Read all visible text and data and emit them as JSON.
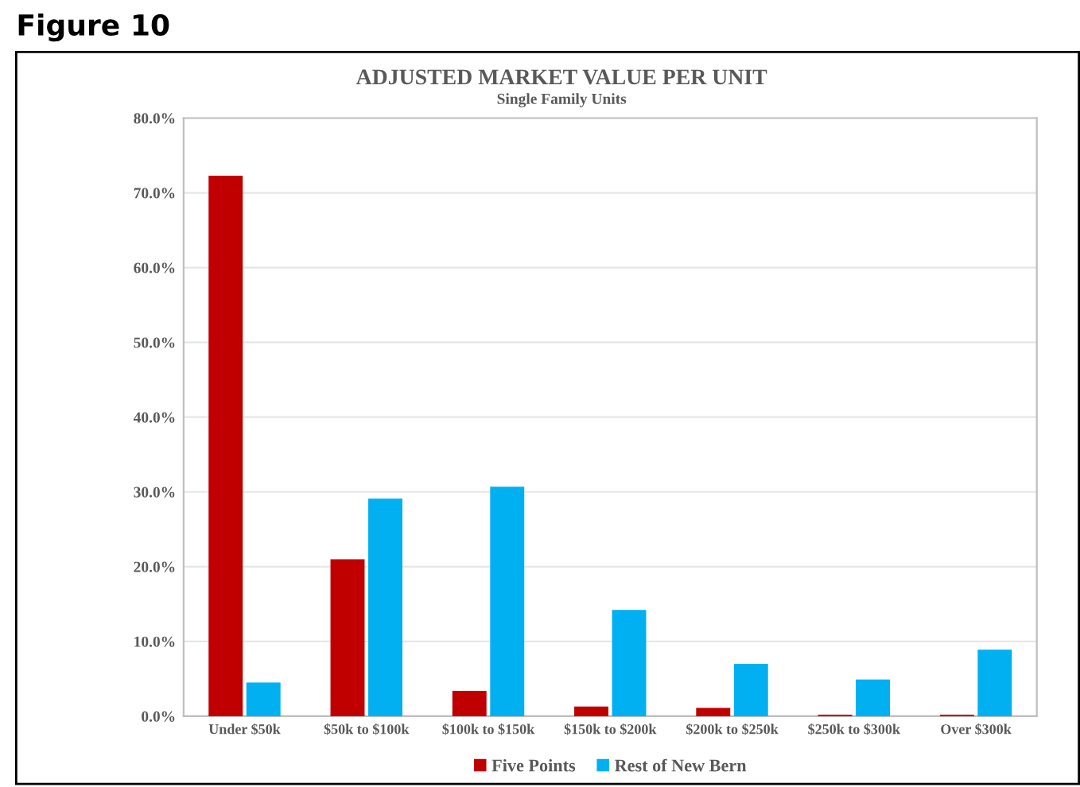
{
  "chart_data": {
    "type": "bar",
    "title": "ADJUSTED MARKET VALUE PER UNIT",
    "subtitle": "Single Family Units",
    "annotations": [
      "Figure 10"
    ],
    "categories": [
      "Under $50k",
      "$50k to $100k",
      "$100k to $150k",
      "$150k to $200k",
      "$200k to $250k",
      "$250k to $300k",
      "Over $300k"
    ],
    "series": [
      {
        "name": "Five Points",
        "color": "#c00000",
        "values": [
          72.3,
          21.0,
          3.4,
          1.3,
          1.1,
          0.2,
          0.2
        ]
      },
      {
        "name": "Rest of New Bern",
        "color": "#00b0f0",
        "values": [
          4.5,
          29.1,
          30.7,
          14.2,
          7.0,
          4.9,
          8.9
        ]
      }
    ],
    "ylim": [
      0,
      80
    ],
    "yticks": [
      {
        "value": 0,
        "label": "0.0%"
      },
      {
        "value": 10,
        "label": "10.0%"
      },
      {
        "value": 20,
        "label": "20.0%"
      },
      {
        "value": 30,
        "label": "30.0%"
      },
      {
        "value": 40,
        "label": "40.0%"
      },
      {
        "value": 50,
        "label": "50.0%"
      },
      {
        "value": 60,
        "label": "60.0%"
      },
      {
        "value": 70,
        "label": "70.0%"
      },
      {
        "value": 80,
        "label": "80.0%"
      }
    ],
    "grid": "y",
    "legend": "bottom"
  }
}
